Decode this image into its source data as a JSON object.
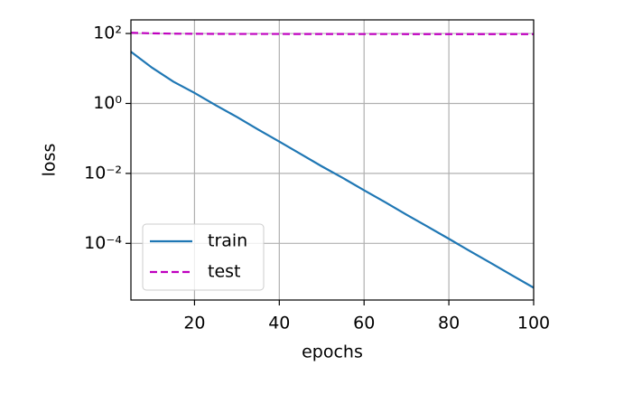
{
  "chart_data": {
    "type": "line",
    "xlabel": "epochs",
    "ylabel": "loss",
    "yscale": "log",
    "grid": true,
    "legend": "lower left",
    "x": [
      5,
      10,
      15,
      20,
      25,
      30,
      35,
      40,
      45,
      50,
      55,
      60,
      65,
      70,
      75,
      80,
      85,
      90,
      95,
      100
    ],
    "series": [
      {
        "name": "train",
        "color": "#1f77b4",
        "dash": "solid",
        "values": [
          30,
          10.5,
          4.2,
          2.0,
          0.89,
          0.41,
          0.18,
          0.081,
          0.036,
          0.016,
          0.0074,
          0.0033,
          0.0015,
          0.00066,
          0.0003,
          0.000135,
          6e-05,
          2.7e-05,
          1.2e-05,
          5.4e-06
        ]
      },
      {
        "name": "test",
        "color": "#bf00bf",
        "dash": "dashed",
        "values": [
          105,
          101,
          99,
          98,
          97.5,
          97,
          97,
          97,
          96.8,
          96.6,
          96.5,
          96.4,
          96.3,
          96.2,
          96.1,
          96,
          96,
          96,
          96,
          96
        ]
      }
    ],
    "xlim": [
      5,
      100
    ],
    "xticks": [
      20,
      40,
      60,
      80,
      100
    ],
    "ylim": [
      2.4e-06,
      245
    ],
    "yticks": [
      {
        "value": 100,
        "label": "10²"
      },
      {
        "value": 1,
        "label": "10⁰"
      },
      {
        "value": 0.01,
        "label": "10⁻²"
      },
      {
        "value": 0.0001,
        "label": "10⁻⁴"
      }
    ]
  }
}
